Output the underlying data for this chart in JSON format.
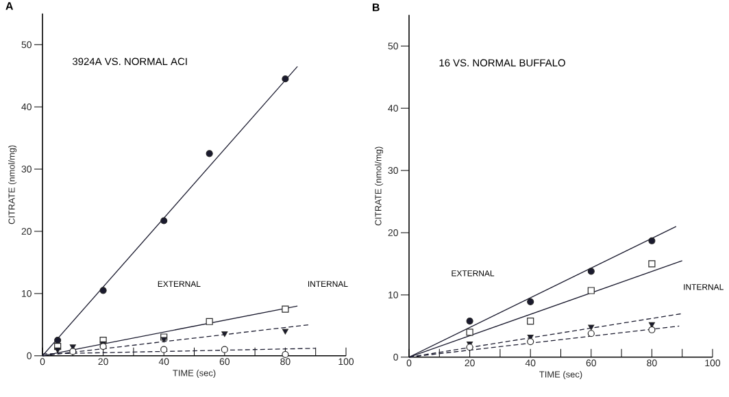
{
  "chart_data": [
    {
      "type": "scatter",
      "title": "3924A VS. NORMAL ACI",
      "xlabel": "TIME (sec)",
      "ylabel": "CITRATE (nmol/mg)",
      "xlim": [
        0,
        100
      ],
      "ylim": [
        0,
        55
      ],
      "xticks": [
        0,
        {
          "value": 10,
          "label": null
        },
        20,
        {
          "value": 30,
          "label": null
        },
        40,
        {
          "value": 50,
          "label": null
        },
        60,
        {
          "value": 70,
          "label": null
        },
        80,
        {
          "value": 90,
          "label": null
        },
        100
      ],
      "yticks": [
        0,
        10,
        20,
        30,
        40,
        50
      ],
      "annotations": [
        "A",
        "EXTERNAL",
        "INTERNAL"
      ],
      "grid": false,
      "series": [
        {
          "marker": "circle",
          "color": "#1a1a2e",
          "x": [
            5,
            20,
            40,
            55,
            80
          ],
          "values": [
            2.5,
            10.5,
            21.7,
            32.5,
            44.5
          ]
        },
        {
          "marker": "square",
          "color": "#ffffff",
          "x": [
            5,
            20,
            40,
            55,
            80
          ],
          "values": [
            1.5,
            2.5,
            3,
            5.5,
            7.5
          ]
        },
        {
          "marker": "triangle",
          "color": "#1a1a2e",
          "x": [
            5,
            10,
            20,
            40,
            60,
            80
          ],
          "values": [
            1,
            1.5,
            2,
            2.7,
            3.6,
            4
          ]
        },
        {
          "marker": "circle",
          "color": "#ffffff",
          "x": [
            10,
            20,
            40,
            60,
            80
          ],
          "values": [
            0.7,
            1.5,
            1,
            1,
            0.2
          ]
        },
        {
          "type": "line",
          "marker": "none",
          "line_style": "solid",
          "color": "#1a1a2e",
          "x": [
            0,
            84
          ],
          "values": [
            0,
            46.5
          ]
        },
        {
          "type": "line",
          "marker": "none",
          "line_style": "solid",
          "color": "#1a1a2e",
          "x": [
            0,
            84
          ],
          "values": [
            0,
            8
          ]
        },
        {
          "type": "line",
          "marker": "none",
          "line_style": "dashed",
          "color": "#1a1a2e",
          "x": [
            0,
            88
          ],
          "values": [
            0,
            5
          ]
        },
        {
          "type": "line",
          "marker": "none",
          "line_style": "dashed",
          "color": "#1a1a2e",
          "x": [
            0,
            90
          ],
          "values": [
            0.3,
            1.2
          ]
        }
      ]
    },
    {
      "type": "scatter",
      "title": "16 VS. NORMAL BUFFALO",
      "xlabel": "TIME (sec)",
      "ylabel": "CITRATE (nmol/mg)",
      "xlim": [
        0,
        100
      ],
      "ylim": [
        0,
        55
      ],
      "xticks": [
        0,
        {
          "value": 10,
          "label": null
        },
        20,
        {
          "value": 30,
          "label": null
        },
        40,
        {
          "value": 50,
          "label": null
        },
        60,
        {
          "value": 70,
          "label": null
        },
        80,
        {
          "value": 90,
          "label": null
        },
        100
      ],
      "yticks": [
        0,
        10,
        20,
        30,
        40,
        50
      ],
      "annotations": [
        "B",
        "EXTERNAL",
        "INTERNAL"
      ],
      "grid": false,
      "series": [
        {
          "marker": "circle",
          "color": "#1a1a2e",
          "x": [
            20,
            40,
            60,
            80
          ],
          "values": [
            5.8,
            8.9,
            13.8,
            18.7
          ]
        },
        {
          "marker": "square",
          "color": "#ffffff",
          "x": [
            20,
            40,
            60,
            80
          ],
          "values": [
            4,
            5.8,
            10.7,
            15
          ]
        },
        {
          "marker": "triangle",
          "color": "#1a1a2e",
          "x": [
            20,
            40,
            60,
            80
          ],
          "values": [
            2.2,
            3.3,
            4.9,
            5.3
          ]
        },
        {
          "marker": "circle",
          "color": "#ffffff",
          "x": [
            20,
            40,
            60,
            80
          ],
          "values": [
            1.6,
            2.5,
            3.8,
            4.4
          ]
        },
        {
          "type": "line",
          "marker": "none",
          "line_style": "solid",
          "color": "#1a1a2e",
          "x": [
            0,
            88
          ],
          "values": [
            0,
            21
          ]
        },
        {
          "type": "line",
          "marker": "none",
          "line_style": "solid",
          "color": "#1a1a2e",
          "x": [
            0,
            90
          ],
          "values": [
            0,
            15.5
          ]
        },
        {
          "type": "line",
          "marker": "none",
          "line_style": "dashed",
          "color": "#1a1a2e",
          "x": [
            0,
            90
          ],
          "values": [
            0,
            7
          ]
        },
        {
          "type": "line",
          "marker": "none",
          "line_style": "dashed",
          "color": "#1a1a2e",
          "x": [
            0,
            89
          ],
          "values": [
            0,
            5
          ]
        }
      ]
    }
  ]
}
